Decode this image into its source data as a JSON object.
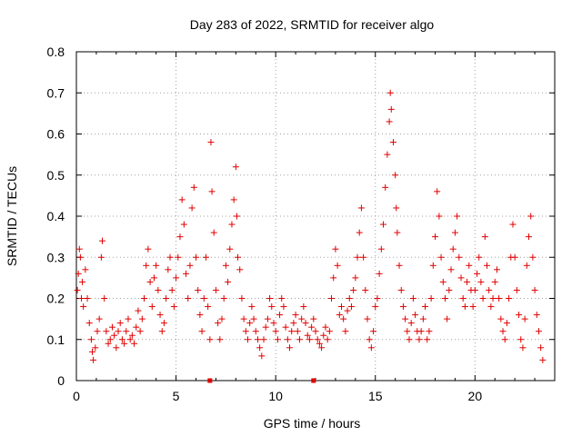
{
  "chart_data": {
    "type": "scatter",
    "title": "Day 283 of 2022, SRMTID for receiver algo",
    "xlabel": "GPS time / hours",
    "ylabel": "SRMTID / TECUs",
    "xlim": [
      0,
      24
    ],
    "ylim": [
      0,
      0.8
    ],
    "xticks": [
      0,
      5,
      10,
      15,
      20
    ],
    "xtick_labels": [
      "0",
      "5",
      "10",
      "15",
      "20"
    ],
    "yticks": [
      0,
      0.1,
      0.2,
      0.3,
      0.4,
      0.5,
      0.6,
      0.7,
      0.8
    ],
    "ytick_labels": [
      "0",
      "0.1",
      "0.2",
      "0.3",
      "0.4",
      "0.5",
      "0.6",
      "0.7",
      "0.8"
    ],
    "grid": true,
    "marker": "+",
    "color": "#e00000",
    "series": [
      {
        "name": "SRMTID",
        "points": [
          [
            0.05,
            0.22
          ],
          [
            0.1,
            0.26
          ],
          [
            0.15,
            0.32
          ],
          [
            0.2,
            0.3
          ],
          [
            0.25,
            0.2
          ],
          [
            0.3,
            0.24
          ],
          [
            0.35,
            0.18
          ],
          [
            0.45,
            0.27
          ],
          [
            0.55,
            0.2
          ],
          [
            0.65,
            0.14
          ],
          [
            0.75,
            0.1
          ],
          [
            0.8,
            0.07
          ],
          [
            0.85,
            0.05
          ],
          [
            0.95,
            0.08
          ],
          [
            1.05,
            0.12
          ],
          [
            1.15,
            0.15
          ],
          [
            1.25,
            0.3
          ],
          [
            1.3,
            0.34
          ],
          [
            1.4,
            0.2
          ],
          [
            1.5,
            0.12
          ],
          [
            1.6,
            0.09
          ],
          [
            1.7,
            0.1
          ],
          [
            1.8,
            0.13
          ],
          [
            1.9,
            0.11
          ],
          [
            2.0,
            0.08
          ],
          [
            2.1,
            0.12
          ],
          [
            2.2,
            0.14
          ],
          [
            2.3,
            0.1
          ],
          [
            2.4,
            0.09
          ],
          [
            2.5,
            0.12
          ],
          [
            2.6,
            0.15
          ],
          [
            2.7,
            0.1
          ],
          [
            2.8,
            0.11
          ],
          [
            2.9,
            0.09
          ],
          [
            3.0,
            0.13
          ],
          [
            3.1,
            0.17
          ],
          [
            3.2,
            0.12
          ],
          [
            3.3,
            0.15
          ],
          [
            3.4,
            0.2
          ],
          [
            3.5,
            0.28
          ],
          [
            3.6,
            0.32
          ],
          [
            3.7,
            0.24
          ],
          [
            3.8,
            0.18
          ],
          [
            3.9,
            0.25
          ],
          [
            4.0,
            0.28
          ],
          [
            4.1,
            0.22
          ],
          [
            4.2,
            0.16
          ],
          [
            4.3,
            0.12
          ],
          [
            4.4,
            0.14
          ],
          [
            4.5,
            0.2
          ],
          [
            4.6,
            0.27
          ],
          [
            4.7,
            0.3
          ],
          [
            4.8,
            0.22
          ],
          [
            4.9,
            0.18
          ],
          [
            5.0,
            0.25
          ],
          [
            5.1,
            0.3
          ],
          [
            5.2,
            0.35
          ],
          [
            5.3,
            0.44
          ],
          [
            5.4,
            0.38
          ],
          [
            5.5,
            0.26
          ],
          [
            5.6,
            0.2
          ],
          [
            5.7,
            0.28
          ],
          [
            5.8,
            0.42
          ],
          [
            5.9,
            0.47
          ],
          [
            6.0,
            0.3
          ],
          [
            6.1,
            0.22
          ],
          [
            6.2,
            0.16
          ],
          [
            6.3,
            0.12
          ],
          [
            6.4,
            0.2
          ],
          [
            6.5,
            0.3
          ],
          [
            6.6,
            0.18
          ],
          [
            6.7,
            0.1
          ],
          [
            6.75,
            0.58
          ],
          [
            6.8,
            0.46
          ],
          [
            6.9,
            0.36
          ],
          [
            7.0,
            0.22
          ],
          [
            7.1,
            0.14
          ],
          [
            7.2,
            0.1
          ],
          [
            7.3,
            0.15
          ],
          [
            7.4,
            0.2
          ],
          [
            7.5,
            0.28
          ],
          [
            7.6,
            0.24
          ],
          [
            7.7,
            0.32
          ],
          [
            7.8,
            0.38
          ],
          [
            7.9,
            0.44
          ],
          [
            8.0,
            0.52
          ],
          [
            8.05,
            0.4
          ],
          [
            8.1,
            0.3
          ],
          [
            8.2,
            0.27
          ],
          [
            8.3,
            0.2
          ],
          [
            8.4,
            0.15
          ],
          [
            8.5,
            0.12
          ],
          [
            8.6,
            0.1
          ],
          [
            8.7,
            0.14
          ],
          [
            8.8,
            0.18
          ],
          [
            8.9,
            0.15
          ],
          [
            9.0,
            0.12
          ],
          [
            9.1,
            0.1
          ],
          [
            9.2,
            0.08
          ],
          [
            9.3,
            0.06
          ],
          [
            9.4,
            0.1
          ],
          [
            9.5,
            0.13
          ],
          [
            9.6,
            0.15
          ],
          [
            9.7,
            0.2
          ],
          [
            9.8,
            0.18
          ],
          [
            9.9,
            0.14
          ],
          [
            10.0,
            0.12
          ],
          [
            10.1,
            0.1
          ],
          [
            10.2,
            0.16
          ],
          [
            10.3,
            0.2
          ],
          [
            10.4,
            0.18
          ],
          [
            10.5,
            0.13
          ],
          [
            10.6,
            0.1
          ],
          [
            10.7,
            0.08
          ],
          [
            10.8,
            0.12
          ],
          [
            10.9,
            0.14
          ],
          [
            11.0,
            0.16
          ],
          [
            11.1,
            0.12
          ],
          [
            11.2,
            0.1
          ],
          [
            11.3,
            0.15
          ],
          [
            11.4,
            0.18
          ],
          [
            11.5,
            0.14
          ],
          [
            11.6,
            0.11
          ],
          [
            11.7,
            0.1
          ],
          [
            11.8,
            0.13
          ],
          [
            11.9,
            0.15
          ],
          [
            12.0,
            0.12
          ],
          [
            12.1,
            0.1
          ],
          [
            12.2,
            0.09
          ],
          [
            12.3,
            0.08
          ],
          [
            12.4,
            0.11
          ],
          [
            12.5,
            0.13
          ],
          [
            12.6,
            0.1
          ],
          [
            12.7,
            0.12
          ],
          [
            12.8,
            0.2
          ],
          [
            12.9,
            0.25
          ],
          [
            13.0,
            0.32
          ],
          [
            13.1,
            0.28
          ],
          [
            13.2,
            0.16
          ],
          [
            13.3,
            0.18
          ],
          [
            13.4,
            0.15
          ],
          [
            13.5,
            0.12
          ],
          [
            13.6,
            0.17
          ],
          [
            13.7,
            0.2
          ],
          [
            13.8,
            0.18
          ],
          [
            13.9,
            0.22
          ],
          [
            14.0,
            0.25
          ],
          [
            14.1,
            0.3
          ],
          [
            14.2,
            0.36
          ],
          [
            14.3,
            0.42
          ],
          [
            14.4,
            0.3
          ],
          [
            14.5,
            0.22
          ],
          [
            14.6,
            0.15
          ],
          [
            14.7,
            0.1
          ],
          [
            14.8,
            0.08
          ],
          [
            14.9,
            0.12
          ],
          [
            15.0,
            0.18
          ],
          [
            15.1,
            0.2
          ],
          [
            15.2,
            0.26
          ],
          [
            15.3,
            0.32
          ],
          [
            15.4,
            0.38
          ],
          [
            15.5,
            0.47
          ],
          [
            15.6,
            0.55
          ],
          [
            15.7,
            0.63
          ],
          [
            15.75,
            0.7
          ],
          [
            15.8,
            0.66
          ],
          [
            15.9,
            0.58
          ],
          [
            16.0,
            0.5
          ],
          [
            16.05,
            0.42
          ],
          [
            16.1,
            0.36
          ],
          [
            16.2,
            0.28
          ],
          [
            16.3,
            0.22
          ],
          [
            16.4,
            0.18
          ],
          [
            16.5,
            0.15
          ],
          [
            16.6,
            0.12
          ],
          [
            16.7,
            0.1
          ],
          [
            16.8,
            0.14
          ],
          [
            16.9,
            0.2
          ],
          [
            17.0,
            0.16
          ],
          [
            17.1,
            0.12
          ],
          [
            17.2,
            0.1
          ],
          [
            17.3,
            0.12
          ],
          [
            17.4,
            0.15
          ],
          [
            17.5,
            0.18
          ],
          [
            17.6,
            0.1
          ],
          [
            17.7,
            0.12
          ],
          [
            17.8,
            0.2
          ],
          [
            17.9,
            0.28
          ],
          [
            18.0,
            0.35
          ],
          [
            18.1,
            0.46
          ],
          [
            18.2,
            0.4
          ],
          [
            18.3,
            0.3
          ],
          [
            18.4,
            0.24
          ],
          [
            18.5,
            0.2
          ],
          [
            18.6,
            0.15
          ],
          [
            18.7,
            0.22
          ],
          [
            18.8,
            0.27
          ],
          [
            18.9,
            0.32
          ],
          [
            19.0,
            0.36
          ],
          [
            19.1,
            0.4
          ],
          [
            19.2,
            0.3
          ],
          [
            19.3,
            0.25
          ],
          [
            19.4,
            0.2
          ],
          [
            19.5,
            0.18
          ],
          [
            19.6,
            0.24
          ],
          [
            19.7,
            0.28
          ],
          [
            19.8,
            0.22
          ],
          [
            19.9,
            0.18
          ],
          [
            20.0,
            0.22
          ],
          [
            20.1,
            0.26
          ],
          [
            20.2,
            0.3
          ],
          [
            20.3,
            0.24
          ],
          [
            20.4,
            0.2
          ],
          [
            20.5,
            0.35
          ],
          [
            20.6,
            0.28
          ],
          [
            20.7,
            0.22
          ],
          [
            20.8,
            0.18
          ],
          [
            20.9,
            0.2
          ],
          [
            21.0,
            0.24
          ],
          [
            21.1,
            0.27
          ],
          [
            21.2,
            0.2
          ],
          [
            21.3,
            0.15
          ],
          [
            21.4,
            0.12
          ],
          [
            21.5,
            0.1
          ],
          [
            21.6,
            0.14
          ],
          [
            21.7,
            0.2
          ],
          [
            21.8,
            0.3
          ],
          [
            21.9,
            0.38
          ],
          [
            22.0,
            0.3
          ],
          [
            22.1,
            0.22
          ],
          [
            22.2,
            0.16
          ],
          [
            22.3,
            0.1
          ],
          [
            22.4,
            0.08
          ],
          [
            22.5,
            0.15
          ],
          [
            22.6,
            0.28
          ],
          [
            22.7,
            0.35
          ],
          [
            22.8,
            0.4
          ],
          [
            22.9,
            0.3
          ],
          [
            23.0,
            0.22
          ],
          [
            23.1,
            0.16
          ],
          [
            23.2,
            0.12
          ],
          [
            23.3,
            0.08
          ],
          [
            23.4,
            0.05
          ]
        ]
      }
    ],
    "baseline_marks": [
      6.7,
      11.9
    ]
  }
}
